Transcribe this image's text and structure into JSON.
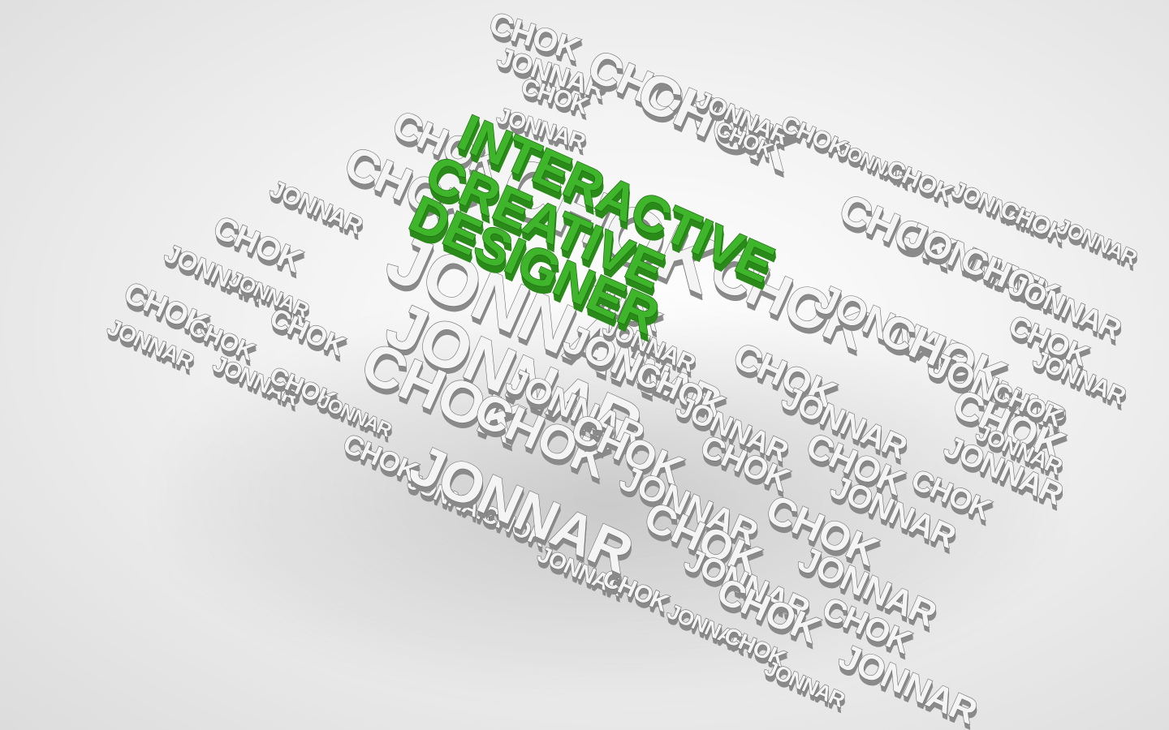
{
  "title_lines": [
    "INTERACTIVE",
    "CREATIVE",
    "DESIGNER"
  ],
  "name_words": [
    "JONNAR",
    "CHOK"
  ],
  "colors": {
    "title_green": "#3fb52b",
    "title_green_dark": "#2a8a1a",
    "letter_white": "#f4f4f4",
    "letter_shadow": "#8a8a8a"
  }
}
